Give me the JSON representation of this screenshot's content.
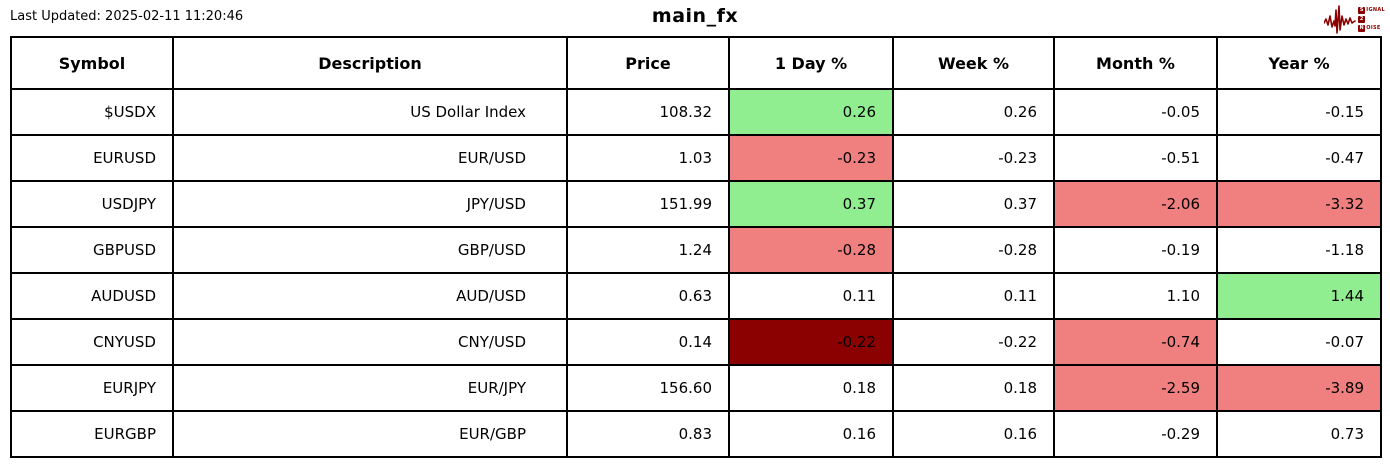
{
  "header": {
    "last_updated": "Last Updated: 2025-02-11 11:20:46",
    "title": "main_fx"
  },
  "logo": {
    "color": "#8B0000",
    "lines": [
      {
        "box": "S",
        "rest": "IGNAL"
      },
      {
        "box": "2",
        "rest": ""
      },
      {
        "box": "N",
        "rest": "OISE"
      }
    ]
  },
  "colors": {
    "positive_bg": "#90EE90",
    "negative_bg": "#F08080",
    "strong_negative_bg": "#8B0000",
    "border": "#000000"
  },
  "chart_data": {
    "type": "table",
    "title": "main_fx",
    "columns": [
      "Symbol",
      "Description",
      "Price",
      "1 Day %",
      "Week %",
      "Month %",
      "Year %"
    ],
    "rows": [
      {
        "cells": [
          {
            "text": "$USDX"
          },
          {
            "text": "US Dollar Index"
          },
          {
            "text": "108.32"
          },
          {
            "text": "0.26",
            "bg": "#90EE90"
          },
          {
            "text": "0.26"
          },
          {
            "text": "-0.05"
          },
          {
            "text": "-0.15"
          }
        ]
      },
      {
        "cells": [
          {
            "text": "EURUSD"
          },
          {
            "text": "EUR/USD"
          },
          {
            "text": "1.03"
          },
          {
            "text": "-0.23",
            "bg": "#F08080"
          },
          {
            "text": "-0.23"
          },
          {
            "text": "-0.51"
          },
          {
            "text": "-0.47"
          }
        ]
      },
      {
        "cells": [
          {
            "text": "USDJPY"
          },
          {
            "text": "JPY/USD"
          },
          {
            "text": "151.99"
          },
          {
            "text": "0.37",
            "bg": "#90EE90"
          },
          {
            "text": "0.37"
          },
          {
            "text": "-2.06",
            "bg": "#F08080"
          },
          {
            "text": "-3.32",
            "bg": "#F08080"
          }
        ]
      },
      {
        "cells": [
          {
            "text": "GBPUSD"
          },
          {
            "text": "GBP/USD"
          },
          {
            "text": "1.24"
          },
          {
            "text": "-0.28",
            "bg": "#F08080"
          },
          {
            "text": "-0.28"
          },
          {
            "text": "-0.19"
          },
          {
            "text": "-1.18"
          }
        ]
      },
      {
        "cells": [
          {
            "text": "AUDUSD"
          },
          {
            "text": "AUD/USD"
          },
          {
            "text": "0.63"
          },
          {
            "text": "0.11"
          },
          {
            "text": "0.11"
          },
          {
            "text": "1.10"
          },
          {
            "text": "1.44",
            "bg": "#90EE90"
          }
        ]
      },
      {
        "cells": [
          {
            "text": "CNYUSD"
          },
          {
            "text": "CNY/USD"
          },
          {
            "text": "0.14"
          },
          {
            "text": "-0.22",
            "bg": "#8B0000"
          },
          {
            "text": "-0.22"
          },
          {
            "text": "-0.74",
            "bg": "#F08080"
          },
          {
            "text": "-0.07"
          }
        ]
      },
      {
        "cells": [
          {
            "text": "EURJPY"
          },
          {
            "text": "EUR/JPY"
          },
          {
            "text": "156.60"
          },
          {
            "text": "0.18"
          },
          {
            "text": "0.18"
          },
          {
            "text": "-2.59",
            "bg": "#F08080"
          },
          {
            "text": "-3.89",
            "bg": "#F08080"
          }
        ]
      },
      {
        "cells": [
          {
            "text": "EURGBP"
          },
          {
            "text": "EUR/GBP"
          },
          {
            "text": "0.83"
          },
          {
            "text": "0.16"
          },
          {
            "text": "0.16"
          },
          {
            "text": "-0.29"
          },
          {
            "text": "0.73"
          }
        ]
      }
    ]
  }
}
